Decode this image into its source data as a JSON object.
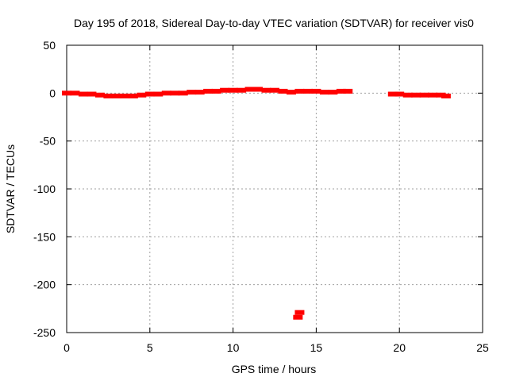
{
  "chart_data": {
    "type": "scatter",
    "title": "Day 195 of 2018, Sidereal Day-to-day VTEC variation (SDTVAR) for receiver vis0",
    "xlabel": "GPS time / hours",
    "ylabel": "SDTVAR / TECUs",
    "xlim": [
      0,
      25
    ],
    "ylim": [
      -250,
      50
    ],
    "xticks": [
      "0",
      "5",
      "10",
      "15",
      "20",
      "25"
    ],
    "yticks": [
      "50",
      "0",
      "-50",
      "-100",
      "-150",
      "-200",
      "-250"
    ],
    "grid": true,
    "marker_color": "#ff0000",
    "series": [
      {
        "x": [
          0.0,
          0.5,
          1.0,
          1.5,
          2.0,
          2.5,
          3.0,
          3.5,
          4.0,
          4.5,
          5.0,
          5.5,
          6.0,
          6.5,
          7.0,
          7.5,
          8.0,
          8.5,
          9.0,
          9.5,
          10.0,
          10.5,
          11.0,
          11.5,
          12.0,
          12.5,
          13.0,
          13.5,
          14.0,
          14.5,
          15.0,
          15.5,
          16.0,
          16.5,
          16.9,
          13.9,
          14.0,
          19.6,
          20.0,
          20.5,
          21.0,
          21.5,
          22.0,
          22.5,
          22.8
        ],
        "y": [
          0,
          0,
          -1,
          -1,
          -2,
          -3,
          -3,
          -3,
          -3,
          -2,
          -1,
          -1,
          0,
          0,
          0,
          1,
          1,
          2,
          2,
          3,
          3,
          3,
          4,
          4,
          3,
          3,
          2,
          1,
          2,
          2,
          2,
          1,
          1,
          2,
          2,
          -234,
          -229,
          -1,
          -1,
          -2,
          -2,
          -2,
          -2,
          -2,
          -3
        ]
      }
    ]
  }
}
